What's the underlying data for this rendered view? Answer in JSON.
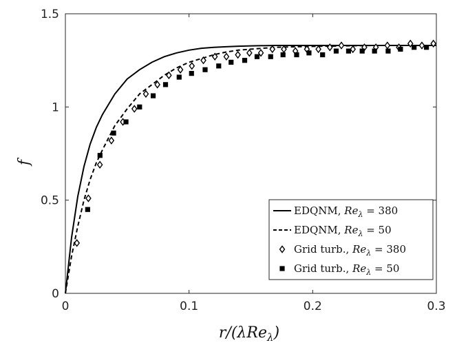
{
  "chart_data": {
    "type": "line",
    "title": "",
    "xlabel": "r/(λRe_λ)",
    "ylabel": "f",
    "xlim": [
      0,
      0.3
    ],
    "ylim": [
      0,
      1.5
    ],
    "xticks": [
      "0",
      "0.1",
      "0.2",
      "0.3"
    ],
    "yticks": [
      "0",
      "0.5",
      "1",
      "1.5"
    ],
    "grid": false,
    "legend_position": "bottom-right",
    "series": [
      {
        "name": "EDQNM, Re_λ = 380",
        "style": "solid-line",
        "color": "#000000",
        "x": [
          0,
          0.005,
          0.01,
          0.015,
          0.02,
          0.025,
          0.03,
          0.04,
          0.05,
          0.06,
          0.07,
          0.08,
          0.09,
          0.1,
          0.11,
          0.12,
          0.13,
          0.14,
          0.15,
          0.17,
          0.2,
          0.25,
          0.3
        ],
        "y": [
          0,
          0.3,
          0.52,
          0.68,
          0.8,
          0.89,
          0.96,
          1.07,
          1.15,
          1.2,
          1.24,
          1.27,
          1.29,
          1.305,
          1.315,
          1.32,
          1.323,
          1.326,
          1.328,
          1.33,
          1.33,
          1.33,
          1.33
        ]
      },
      {
        "name": "EDQNM, Re_λ = 50",
        "style": "dashed-line",
        "color": "#000000",
        "x": [
          0,
          0.005,
          0.01,
          0.015,
          0.02,
          0.025,
          0.03,
          0.04,
          0.05,
          0.06,
          0.07,
          0.08,
          0.09,
          0.1,
          0.11,
          0.12,
          0.13,
          0.14,
          0.15,
          0.17,
          0.2,
          0.25,
          0.3
        ],
        "y": [
          0,
          0.2,
          0.36,
          0.5,
          0.61,
          0.7,
          0.77,
          0.9,
          0.99,
          1.07,
          1.12,
          1.17,
          1.21,
          1.24,
          1.26,
          1.28,
          1.295,
          1.305,
          1.31,
          1.32,
          1.325,
          1.33,
          1.33
        ]
      },
      {
        "name": "Grid turb., Re_λ = 380",
        "style": "open-diamond",
        "color": "#000000",
        "x": [
          0.0093,
          0.0186,
          0.0279,
          0.0372,
          0.0465,
          0.0558,
          0.0651,
          0.0744,
          0.0837,
          0.093,
          0.1023,
          0.1116,
          0.1209,
          0.1302,
          0.1395,
          0.1488,
          0.1581,
          0.1674,
          0.1767,
          0.186,
          0.1953,
          0.2046,
          0.2139,
          0.2232,
          0.2325,
          0.2418,
          0.2511,
          0.2604,
          0.2697,
          0.279,
          0.2883,
          0.2976
        ],
        "y": [
          0.27,
          0.51,
          0.69,
          0.82,
          0.92,
          0.99,
          1.07,
          1.12,
          1.17,
          1.2,
          1.22,
          1.25,
          1.27,
          1.27,
          1.28,
          1.29,
          1.29,
          1.31,
          1.31,
          1.3,
          1.31,
          1.31,
          1.32,
          1.33,
          1.31,
          1.32,
          1.32,
          1.33,
          1.32,
          1.34,
          1.33,
          1.34
        ]
      },
      {
        "name": "Grid turb., Re_λ = 50",
        "style": "filled-square",
        "color": "#000000",
        "x": [
          0.018,
          0.028,
          0.039,
          0.049,
          0.06,
          0.071,
          0.081,
          0.092,
          0.102,
          0.113,
          0.124,
          0.134,
          0.145,
          0.155,
          0.166,
          0.176,
          0.187,
          0.197,
          0.208,
          0.219,
          0.229,
          0.24,
          0.25,
          0.261,
          0.271,
          0.282,
          0.292
        ],
        "y": [
          0.45,
          0.74,
          0.86,
          0.92,
          1.0,
          1.06,
          1.12,
          1.16,
          1.18,
          1.2,
          1.22,
          1.24,
          1.25,
          1.27,
          1.27,
          1.28,
          1.28,
          1.29,
          1.28,
          1.3,
          1.3,
          1.3,
          1.3,
          1.3,
          1.31,
          1.32,
          1.32
        ]
      }
    ]
  },
  "legend": {
    "items": [
      {
        "prefix": "EDQNM, ",
        "var": "Re",
        "sub": "λ",
        "rest": " = 380"
      },
      {
        "prefix": "EDQNM, ",
        "var": "Re",
        "sub": "λ",
        "rest": " = 50"
      },
      {
        "prefix": "Grid turb., ",
        "var": "Re",
        "sub": "λ",
        "rest": " = 380"
      },
      {
        "prefix": "Grid turb., ",
        "var": "Re",
        "sub": "λ",
        "rest": " = 50"
      }
    ]
  }
}
